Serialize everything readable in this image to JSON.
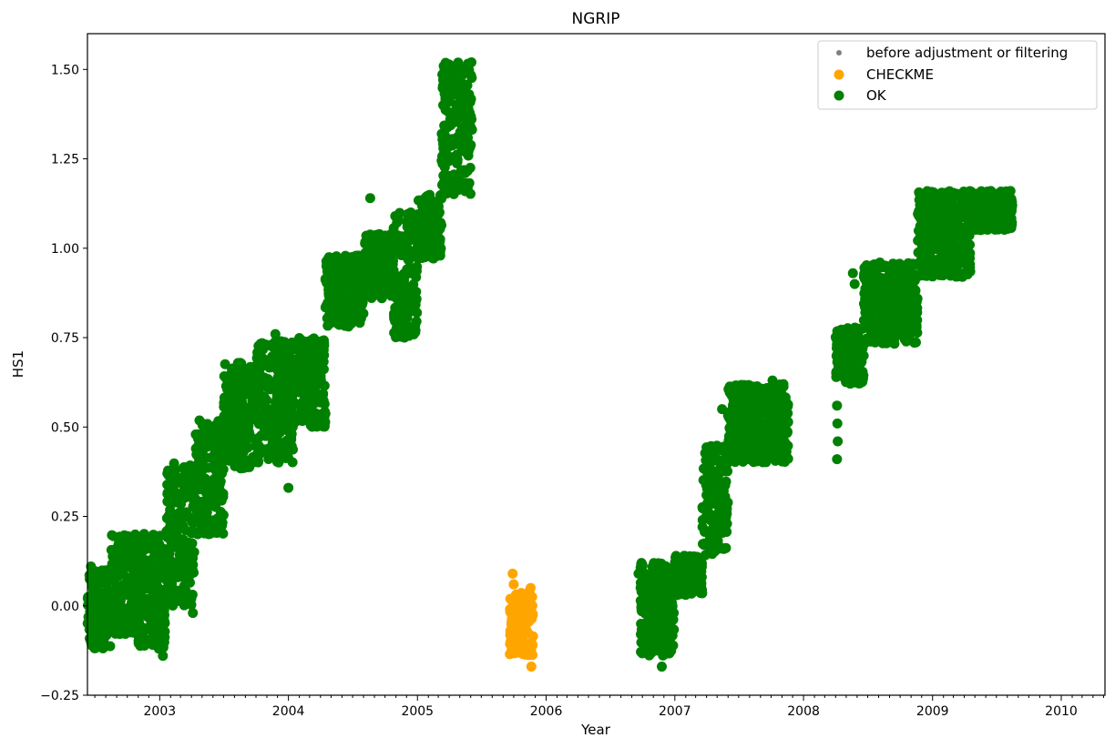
{
  "chart_data": {
    "type": "scatter",
    "title": "NGRIP",
    "xlabel": "Year",
    "ylabel": "HS1",
    "xlim": [
      "2002-06-10",
      "2010-05-05"
    ],
    "ylim": [
      -0.25,
      1.6
    ],
    "x_ticks": [
      "2003",
      "2004",
      "2005",
      "2006",
      "2007",
      "2008",
      "2009",
      "2010"
    ],
    "y_ticks": [
      -0.25,
      0.0,
      0.25,
      0.5,
      0.75,
      1.0,
      1.25,
      1.5
    ],
    "y_tick_labels": [
      "−0.25",
      "0.00",
      "0.25",
      "0.50",
      "0.75",
      "1.00",
      "1.25",
      "1.50"
    ],
    "grid": false,
    "legend_position": "top-right",
    "legend": [
      {
        "label": "before adjustment or filtering",
        "color": "#808080",
        "marker": "small-dot"
      },
      {
        "label": "CHECKME",
        "color": "#ffa500",
        "marker": "dot"
      },
      {
        "label": "OK",
        "color": "#008000",
        "marker": "dot"
      }
    ],
    "series": [
      {
        "name": "OK",
        "color": "#008000",
        "ranges": [
          {
            "x": [
              "2002-06-10",
              "2002-08-15"
            ],
            "y": [
              -0.12,
              0.1
            ]
          },
          {
            "x": [
              "2002-08-15",
              "2002-11-01"
            ],
            "y": [
              -0.08,
              0.2
            ]
          },
          {
            "x": [
              "2002-11-01",
              "2003-01-20"
            ],
            "y": [
              -0.12,
              0.21
            ]
          },
          {
            "x": [
              "2003-01-20",
              "2003-04-10"
            ],
            "y": [
              0.0,
              0.4
            ]
          },
          {
            "x": [
              "2003-04-10",
              "2003-07-01"
            ],
            "y": [
              0.2,
              0.52
            ]
          },
          {
            "x": [
              "2003-07-01",
              "2003-10-01"
            ],
            "y": [
              0.38,
              0.68
            ]
          },
          {
            "x": [
              "2003-10-01",
              "2004-01-15"
            ],
            "y": [
              0.4,
              0.74
            ]
          },
          {
            "x": [
              "2004-01-15",
              "2004-04-15"
            ],
            "y": [
              0.5,
              0.75
            ]
          },
          {
            "x": [
              "2004-04-15",
              "2004-08-01"
            ],
            "y": [
              0.78,
              0.98
            ]
          },
          {
            "x": [
              "2004-08-01",
              "2004-10-25"
            ],
            "y": [
              0.86,
              1.04
            ]
          },
          {
            "x": [
              "2004-10-25",
              "2004-12-31"
            ],
            "y": [
              0.75,
              1.1
            ]
          },
          {
            "x": [
              "2005-01-01",
              "2005-03-10"
            ],
            "y": [
              0.97,
              1.15
            ]
          },
          {
            "x": [
              "2005-03-10",
              "2005-06-05"
            ],
            "y": [
              1.15,
              1.52
            ]
          },
          {
            "x": [
              "2006-09-25",
              "2006-12-31"
            ],
            "y": [
              -0.14,
              0.12
            ]
          },
          {
            "x": [
              "2007-01-01",
              "2007-03-20"
            ],
            "y": [
              0.03,
              0.14
            ]
          },
          {
            "x": [
              "2007-03-20",
              "2007-06-01"
            ],
            "y": [
              0.14,
              0.45
            ]
          },
          {
            "x": [
              "2007-06-01",
              "2007-11-20"
            ],
            "y": [
              0.4,
              0.62
            ]
          },
          {
            "x": [
              "2008-04-01",
              "2008-06-20"
            ],
            "y": [
              0.62,
              0.78
            ]
          },
          {
            "x": [
              "2008-06-20",
              "2008-11-20"
            ],
            "y": [
              0.73,
              0.96
            ]
          },
          {
            "x": [
              "2008-11-20",
              "2009-04-20"
            ],
            "y": [
              0.92,
              1.16
            ]
          },
          {
            "x": [
              "2009-04-20",
              "2009-08-15"
            ],
            "y": [
              1.05,
              1.16
            ]
          }
        ],
        "points": [
          [
            "2002-06-20",
            0.11
          ],
          [
            "2003-01-10",
            -0.14
          ],
          [
            "2003-04-05",
            -0.02
          ],
          [
            "2004-01-01",
            0.33
          ],
          [
            "2004-11-25",
            0.75
          ],
          [
            "2004-08-20",
            1.14
          ],
          [
            "2003-11-25",
            0.76
          ],
          [
            "2005-03-15",
            1.4
          ],
          [
            "2005-06-03",
            1.52
          ],
          [
            "2006-09-20",
            0.09
          ],
          [
            "2006-10-05",
            0.06
          ],
          [
            "2006-11-25",
            -0.17
          ],
          [
            "2006-12-01",
            0.08
          ],
          [
            "2007-06-10",
            0.59
          ],
          [
            "2007-05-15",
            0.55
          ],
          [
            "2007-08-15",
            0.6
          ],
          [
            "2007-10-05",
            0.63
          ],
          [
            "2007-11-05",
            0.62
          ],
          [
            "2008-04-05",
            0.41
          ],
          [
            "2008-04-07",
            0.46
          ],
          [
            "2008-04-06",
            0.51
          ],
          [
            "2008-04-05",
            0.56
          ],
          [
            "2008-05-20",
            0.93
          ],
          [
            "2008-05-25",
            0.9
          ],
          [
            "2008-07-20",
            0.86
          ],
          [
            "2009-08-10",
            1.16
          ],
          [
            "2009-06-15",
            1.16
          ],
          [
            "2009-07-10",
            1.08
          ],
          [
            "2009-08-15",
            1.12
          ]
        ]
      },
      {
        "name": "CHECKME",
        "color": "#ffa500",
        "ranges": [
          {
            "x": [
              "2005-09-20",
              "2005-11-25"
            ],
            "y": [
              -0.14,
              0.04
            ]
          }
        ],
        "points": [
          [
            "2005-09-28",
            0.09
          ],
          [
            "2005-10-01",
            0.06
          ],
          [
            "2005-11-20",
            -0.17
          ],
          [
            "2005-11-18",
            0.05
          ]
        ]
      }
    ]
  }
}
